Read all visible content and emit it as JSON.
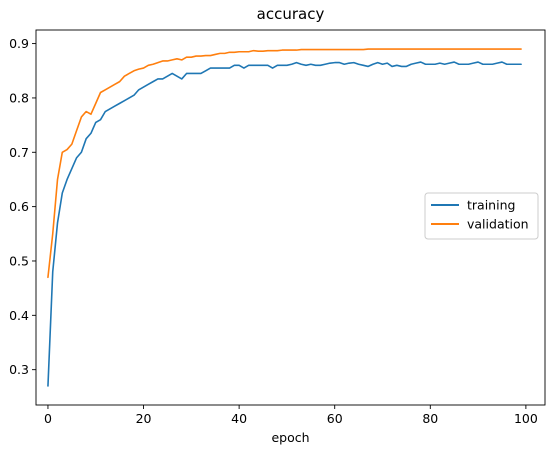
{
  "chart_data": {
    "type": "line",
    "title": "accuracy",
    "xlabel": "epoch",
    "ylabel": "",
    "xlim": [
      -2.5,
      104
    ],
    "ylim": [
      0.235,
      0.925
    ],
    "xticks": [
      0,
      20,
      40,
      60,
      80,
      100
    ],
    "yticks": [
      0.3,
      0.4,
      0.5,
      0.6,
      0.7,
      0.8,
      0.9
    ],
    "xtick_labels": [
      "0",
      "20",
      "40",
      "60",
      "80",
      "100"
    ],
    "ytick_labels": [
      "0.3",
      "0.4",
      "0.5",
      "0.6",
      "0.7",
      "0.8",
      "0.9"
    ],
    "grid": false,
    "legend_position": "center-right",
    "series": [
      {
        "name": "training",
        "color": "#1f77b4",
        "x": [
          0,
          1,
          2,
          3,
          4,
          5,
          6,
          7,
          8,
          9,
          10,
          11,
          12,
          13,
          14,
          15,
          16,
          17,
          18,
          19,
          20,
          21,
          22,
          23,
          24,
          25,
          26,
          27,
          28,
          29,
          30,
          31,
          32,
          33,
          34,
          35,
          36,
          37,
          38,
          39,
          40,
          41,
          42,
          43,
          44,
          45,
          46,
          47,
          48,
          49,
          50,
          51,
          52,
          53,
          54,
          55,
          56,
          57,
          58,
          59,
          60,
          61,
          62,
          63,
          64,
          65,
          66,
          67,
          68,
          69,
          70,
          71,
          72,
          73,
          74,
          75,
          76,
          77,
          78,
          79,
          80,
          81,
          82,
          83,
          84,
          85,
          86,
          87,
          88,
          89,
          90,
          91,
          92,
          93,
          94,
          95,
          96,
          97,
          98,
          99
        ],
        "values": [
          0.27,
          0.48,
          0.57,
          0.625,
          0.65,
          0.67,
          0.69,
          0.7,
          0.725,
          0.735,
          0.755,
          0.76,
          0.775,
          0.78,
          0.785,
          0.79,
          0.795,
          0.8,
          0.805,
          0.815,
          0.82,
          0.825,
          0.83,
          0.835,
          0.835,
          0.84,
          0.845,
          0.84,
          0.835,
          0.845,
          0.845,
          0.845,
          0.845,
          0.85,
          0.855,
          0.855,
          0.855,
          0.855,
          0.855,
          0.86,
          0.86,
          0.855,
          0.86,
          0.86,
          0.86,
          0.86,
          0.86,
          0.855,
          0.86,
          0.86,
          0.86,
          0.862,
          0.865,
          0.862,
          0.86,
          0.862,
          0.86,
          0.86,
          0.862,
          0.864,
          0.865,
          0.865,
          0.862,
          0.864,
          0.865,
          0.862,
          0.86,
          0.858,
          0.862,
          0.865,
          0.862,
          0.864,
          0.858,
          0.86,
          0.858,
          0.858,
          0.862,
          0.864,
          0.866,
          0.862,
          0.862,
          0.862,
          0.864,
          0.862,
          0.864,
          0.866,
          0.862,
          0.862,
          0.862,
          0.864,
          0.866,
          0.862,
          0.862,
          0.862,
          0.864,
          0.866,
          0.862,
          0.862,
          0.862,
          0.862
        ]
      },
      {
        "name": "validation",
        "color": "#ff7f0e",
        "x": [
          0,
          1,
          2,
          3,
          4,
          5,
          6,
          7,
          8,
          9,
          10,
          11,
          12,
          13,
          14,
          15,
          16,
          17,
          18,
          19,
          20,
          21,
          22,
          23,
          24,
          25,
          26,
          27,
          28,
          29,
          30,
          31,
          32,
          33,
          34,
          35,
          36,
          37,
          38,
          39,
          40,
          41,
          42,
          43,
          44,
          45,
          46,
          47,
          48,
          49,
          50,
          51,
          52,
          53,
          54,
          55,
          56,
          57,
          58,
          59,
          60,
          61,
          62,
          63,
          64,
          65,
          66,
          67,
          68,
          69,
          70,
          71,
          72,
          73,
          74,
          75,
          76,
          77,
          78,
          79,
          80,
          81,
          82,
          83,
          84,
          85,
          86,
          87,
          88,
          89,
          90,
          91,
          92,
          93,
          94,
          95,
          96,
          97,
          98,
          99
        ],
        "values": [
          0.47,
          0.55,
          0.65,
          0.7,
          0.705,
          0.715,
          0.74,
          0.765,
          0.775,
          0.77,
          0.79,
          0.81,
          0.815,
          0.82,
          0.825,
          0.83,
          0.84,
          0.845,
          0.85,
          0.853,
          0.855,
          0.86,
          0.862,
          0.865,
          0.868,
          0.868,
          0.87,
          0.872,
          0.87,
          0.875,
          0.875,
          0.877,
          0.877,
          0.878,
          0.878,
          0.88,
          0.882,
          0.882,
          0.884,
          0.884,
          0.885,
          0.885,
          0.885,
          0.887,
          0.886,
          0.886,
          0.887,
          0.887,
          0.887,
          0.888,
          0.888,
          0.888,
          0.888,
          0.889,
          0.889,
          0.889,
          0.889,
          0.889,
          0.889,
          0.889,
          0.889,
          0.889,
          0.889,
          0.889,
          0.889,
          0.889,
          0.889,
          0.89,
          0.89,
          0.89,
          0.89,
          0.89,
          0.89,
          0.89,
          0.89,
          0.89,
          0.89,
          0.89,
          0.89,
          0.89,
          0.89,
          0.89,
          0.89,
          0.89,
          0.89,
          0.89,
          0.89,
          0.89,
          0.89,
          0.89,
          0.89,
          0.89,
          0.89,
          0.89,
          0.89,
          0.89,
          0.89,
          0.89,
          0.89,
          0.89
        ]
      }
    ]
  }
}
